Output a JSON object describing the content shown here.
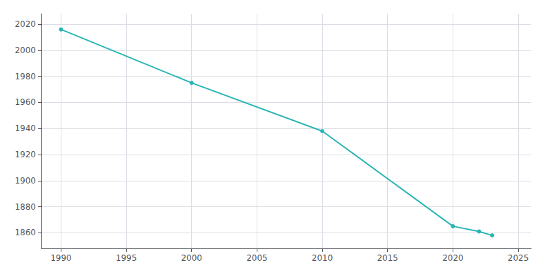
{
  "chart_data": {
    "type": "line",
    "x": [
      1990,
      2000,
      2010,
      2020,
      2022,
      2023
    ],
    "values": [
      2016,
      1975,
      1938,
      1865,
      1861,
      1858
    ],
    "color": "#2ab5b5",
    "marker": "circle",
    "xlim": [
      1988.5,
      2026
    ],
    "ylim": [
      1848,
      2028
    ],
    "xticks": [
      1990,
      1995,
      2000,
      2005,
      2010,
      2015,
      2020,
      2025
    ],
    "yticks": [
      1860,
      1880,
      1900,
      1920,
      1940,
      1960,
      1980,
      2000,
      2020
    ],
    "grid": true
  }
}
